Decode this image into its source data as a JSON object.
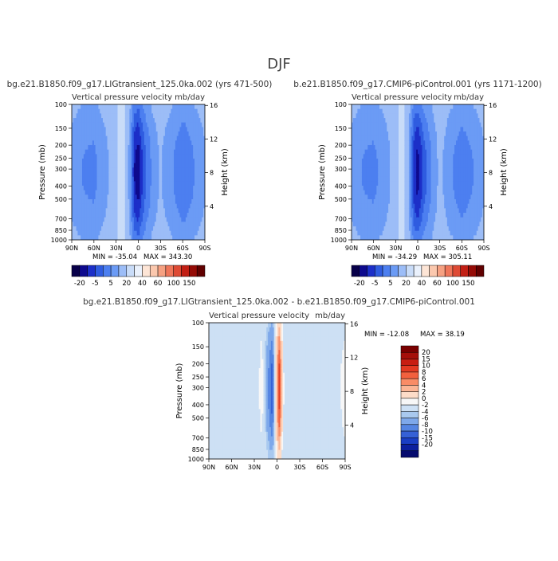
{
  "figure": {
    "title": "DJF"
  },
  "chart_data": [
    {
      "type": "heatmap",
      "title": "bg.e21.B1850.f09_g17.LIGtransient_125.0ka.002 (yrs 471-500)",
      "variable": "Vertical pressure velocity",
      "units": "mb/day",
      "xlabel": "",
      "ylabel": "Pressure (mb)",
      "y2label": "Height (km)",
      "x_ticks": [
        "90N",
        "60N",
        "30N",
        "0",
        "30S",
        "60S",
        "90S"
      ],
      "y_ticks": [
        100,
        150,
        200,
        250,
        300,
        400,
        500,
        700,
        850,
        1000
      ],
      "y2_ticks": [
        16,
        12,
        8,
        4
      ],
      "ylim": [
        1000,
        100
      ],
      "log_pressure_axis": true,
      "stats": {
        "min": "MIN = -35.04",
        "max": "MAX = 343.30"
      },
      "colorbar": {
        "orientation": "horizontal",
        "labels": [
          "-20",
          "-5",
          "5",
          "20",
          "40",
          "60",
          "100",
          "150"
        ],
        "colors": [
          "#08004a",
          "#0e0a8e",
          "#1c2fc8",
          "#2f5ce0",
          "#4c7ff0",
          "#6b9bf5",
          "#9cbdf7",
          "#c9dcf8",
          "#eaf1fc",
          "#fde5d6",
          "#fbc8ae",
          "#f6a182",
          "#ef765a",
          "#de4a34",
          "#c21f14",
          "#950b06",
          "#610000"
        ]
      },
      "field": [
        {
          "lat": 90,
          "w": -6
        },
        {
          "lat": 75,
          "w": -9
        },
        {
          "lat": 60,
          "w": -10
        },
        {
          "lat": 45,
          "w": -6
        },
        {
          "lat": 30,
          "w": -1
        },
        {
          "lat": 20,
          "w": 3
        },
        {
          "lat": 12,
          "w": -6
        },
        {
          "lat": 5,
          "w": -22
        },
        {
          "lat": 0,
          "w": -25
        },
        {
          "lat": -8,
          "w": -15
        },
        {
          "lat": -20,
          "w": -7
        },
        {
          "lat": -30,
          "w": -4
        },
        {
          "lat": -45,
          "w": -8
        },
        {
          "lat": -60,
          "w": -13
        },
        {
          "lat": -75,
          "w": -9
        },
        {
          "lat": -90,
          "w": -5
        }
      ]
    },
    {
      "type": "heatmap",
      "title": "b.e21.B1850.f09_g17.CMIP6-piControl.001 (yrs 1171-1200)",
      "variable": "Vertical pressure velocity",
      "units": "mb/day",
      "xlabel": "",
      "ylabel": "Pressure (mb)",
      "y2label": "Height (km)",
      "x_ticks": [
        "90N",
        "60N",
        "30N",
        "0",
        "30S",
        "60S",
        "90S"
      ],
      "y_ticks": [
        100,
        150,
        200,
        250,
        300,
        400,
        500,
        700,
        850,
        1000
      ],
      "y2_ticks": [
        16,
        12,
        8,
        4
      ],
      "ylim": [
        1000,
        100
      ],
      "log_pressure_axis": true,
      "stats": {
        "min": "MIN = -34.29",
        "max": "MAX = 305.11"
      },
      "colorbar": {
        "orientation": "horizontal",
        "labels": [
          "-20",
          "-5",
          "5",
          "20",
          "40",
          "60",
          "100",
          "150"
        ],
        "colors": [
          "#08004a",
          "#0e0a8e",
          "#1c2fc8",
          "#2f5ce0",
          "#4c7ff0",
          "#6b9bf5",
          "#9cbdf7",
          "#c9dcf8",
          "#eaf1fc",
          "#fde5d6",
          "#fbc8ae",
          "#f6a182",
          "#ef765a",
          "#de4a34",
          "#c21f14",
          "#950b06",
          "#610000"
        ]
      },
      "field": [
        {
          "lat": 90,
          "w": -6
        },
        {
          "lat": 75,
          "w": -9
        },
        {
          "lat": 60,
          "w": -10
        },
        {
          "lat": 45,
          "w": -7
        },
        {
          "lat": 30,
          "w": -2
        },
        {
          "lat": 20,
          "w": 2
        },
        {
          "lat": 12,
          "w": -5
        },
        {
          "lat": 5,
          "w": -20
        },
        {
          "lat": 0,
          "w": -24
        },
        {
          "lat": -8,
          "w": -16
        },
        {
          "lat": -20,
          "w": -8
        },
        {
          "lat": -30,
          "w": -3
        },
        {
          "lat": -45,
          "w": -8
        },
        {
          "lat": -60,
          "w": -12
        },
        {
          "lat": -75,
          "w": -9
        },
        {
          "lat": -90,
          "w": -5
        }
      ]
    },
    {
      "type": "heatmap",
      "title": "bg.e21.B1850.f09_g17.LIGtransient_125.0ka.002 - b.e21.B1850.f09_g17.CMIP6-piControl.001",
      "variable": "Vertical pressure velocity",
      "units": "mb/day",
      "xlabel": "",
      "ylabel": "Pressure (mb)",
      "y2label": "Height (km)",
      "x_ticks": [
        "90N",
        "60N",
        "30N",
        "0",
        "30S",
        "60S",
        "90S"
      ],
      "y_ticks": [
        100,
        150,
        200,
        250,
        300,
        400,
        500,
        700,
        850,
        1000
      ],
      "y2_ticks": [
        16,
        12,
        8,
        4
      ],
      "ylim": [
        1000,
        100
      ],
      "log_pressure_axis": true,
      "stats": {
        "min": "MIN = -12.08",
        "max": "MAX =  38.19"
      },
      "colorbar": {
        "orientation": "vertical",
        "labels": [
          "20",
          "15",
          "10",
          "8",
          "6",
          "4",
          "2",
          "0",
          "-2",
          "-4",
          "-6",
          "-8",
          "-10",
          "-15",
          "-20"
        ],
        "colors": [
          "#7a0000",
          "#a50f0a",
          "#c81e12",
          "#e33a22",
          "#f2603e",
          "#f98c66",
          "#fbb595",
          "#fddcc8",
          "#f7f7f7",
          "#cde0f4",
          "#a9c9ef",
          "#7ea8ea",
          "#5585e2",
          "#3560d6",
          "#1a3ec4",
          "#0c1f9e",
          "#050a6e"
        ]
      },
      "field": [
        {
          "lat": 90,
          "w": 0.5
        },
        {
          "lat": 75,
          "w": 0.5
        },
        {
          "lat": 60,
          "w": -0.3
        },
        {
          "lat": 45,
          "w": 0.8
        },
        {
          "lat": 30,
          "w": -0.6
        },
        {
          "lat": 20,
          "w": 1.5
        },
        {
          "lat": 12,
          "w": -3
        },
        {
          "lat": 6,
          "w": -6
        },
        {
          "lat": 0,
          "w": 5
        },
        {
          "lat": -3,
          "w": 9
        },
        {
          "lat": -8,
          "w": 1
        },
        {
          "lat": -20,
          "w": -0.8
        },
        {
          "lat": -35,
          "w": 0.5
        },
        {
          "lat": -55,
          "w": -0.5
        },
        {
          "lat": -75,
          "w": -0.3
        },
        {
          "lat": -90,
          "w": 1.5
        }
      ]
    }
  ]
}
